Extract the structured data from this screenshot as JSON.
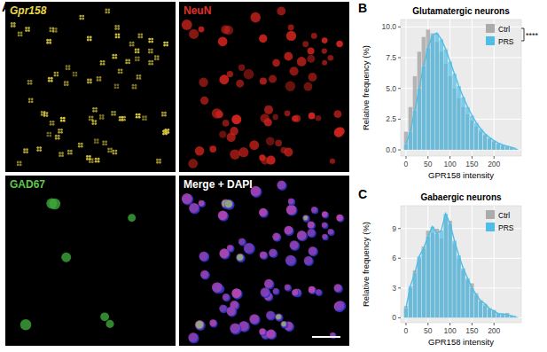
{
  "panel_a": {
    "panel_label": "A",
    "images": [
      {
        "label": "Gpr158",
        "color": "#e8d84a",
        "italic": true
      },
      {
        "label": "NeuN",
        "color": "#e0302a"
      },
      {
        "label": "GAD67",
        "color": "#5fc84a"
      },
      {
        "label": "Merge + DAPI",
        "color": "#ffffff"
      }
    ]
  },
  "chart_data": [
    {
      "type": "histogram",
      "panel_label": "B",
      "title": "Glutamatergic neurons",
      "x_label": "GPR158 intensity",
      "y_label": "Relative frequency (%)",
      "annotation": "****",
      "bins": [
        -5,
        5,
        15,
        25,
        35,
        45,
        55,
        65,
        75,
        85,
        95,
        105,
        115,
        125,
        135,
        145,
        155,
        165,
        175,
        185,
        195,
        205,
        215,
        225,
        235,
        245,
        255
      ],
      "series": [
        {
          "name": "Ctrl",
          "color": "#ababab",
          "values": [
            1.5,
            3.5,
            6.0,
            8.0,
            9.2,
            9.8,
            9.5,
            8.8,
            8.0,
            7.0,
            6.0,
            5.0,
            4.2,
            3.5,
            2.9,
            2.4,
            1.9,
            1.5,
            1.2,
            0.9,
            0.7,
            0.5,
            0.35,
            0.25,
            0.15,
            0.1
          ]
        },
        {
          "name": "PRS",
          "color": "#4fbde6",
          "values": [
            0.5,
            1.5,
            3.2,
            5.0,
            6.8,
            8.3,
            9.3,
            9.5,
            9.0,
            8.2,
            7.2,
            6.2,
            5.2,
            4.3,
            3.5,
            2.8,
            2.2,
            1.7,
            1.3,
            1.0,
            0.75,
            0.55,
            0.4,
            0.3,
            0.2,
            0.1
          ]
        }
      ],
      "xlim": [
        -12,
        262
      ],
      "xticks": [
        0,
        50,
        100,
        150,
        200
      ],
      "ylim": [
        -0.5,
        10.6
      ],
      "yticks": [
        {
          "value": 0,
          "label": "0.0"
        },
        2.5,
        {
          "value": 5,
          "label": "5.0"
        },
        7.5,
        {
          "value": 10,
          "label": "10.0"
        }
      ],
      "grid": true,
      "legend": "upper right"
    },
    {
      "type": "histogram",
      "panel_label": "C",
      "title": "Gabaergic neurons",
      "x_label": "GPR158 intensity",
      "y_label": "Relative frequency (%)",
      "bins": [
        -5,
        5,
        15,
        25,
        35,
        45,
        55,
        65,
        75,
        85,
        95,
        105,
        115,
        125,
        135,
        145,
        155,
        165,
        175,
        185,
        195,
        205,
        215,
        225,
        235,
        245,
        255
      ],
      "series": [
        {
          "name": "Ctrl",
          "color": "#ababab",
          "values": [
            1.2,
            3.0,
            4.8,
            6.0,
            7.2,
            8.8,
            8.6,
            9.0,
            8.0,
            10.3,
            9.8,
            7.5,
            6.0,
            4.8,
            3.8,
            3.5,
            2.5,
            1.8,
            1.2,
            1.0,
            0.8,
            0.5,
            0.3,
            0.5,
            0.2,
            0.1
          ]
        },
        {
          "name": "PRS",
          "color": "#4fbde6",
          "values": [
            1.0,
            3.2,
            4.5,
            6.2,
            7.0,
            8.2,
            9.2,
            8.5,
            8.8,
            10.5,
            9.5,
            7.8,
            6.3,
            5.0,
            4.0,
            3.0,
            2.3,
            1.7,
            1.4,
            0.9,
            0.7,
            0.4,
            0.4,
            0.3,
            0.2,
            0.1
          ]
        }
      ],
      "xlim": [
        -12,
        262
      ],
      "xticks": [
        0,
        50,
        100,
        150,
        200
      ],
      "ylim": [
        -0.5,
        11.3
      ],
      "yticks": [
        0,
        3,
        6,
        9
      ],
      "grid": true,
      "legend": "upper right"
    }
  ]
}
